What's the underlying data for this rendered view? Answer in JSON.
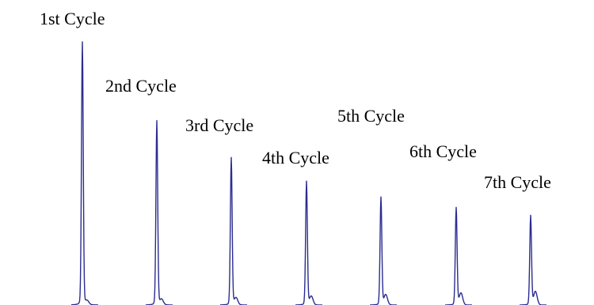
{
  "chart_data": {
    "type": "line",
    "title": "",
    "xlabel": "",
    "ylabel": "",
    "grid": false,
    "line_color": "#2b2d8f",
    "series": [
      {
        "name": "1st Cycle",
        "peak": 1.0
      },
      {
        "name": "2nd Cycle",
        "peak": 0.7
      },
      {
        "name": "3rd Cycle",
        "peak": 0.56
      },
      {
        "name": "4th Cycle",
        "peak": 0.47
      },
      {
        "name": "5th Cycle",
        "peak": 0.41
      },
      {
        "name": "6th Cycle",
        "peak": 0.37
      },
      {
        "name": "7th Cycle",
        "peak": 0.34
      }
    ]
  }
}
